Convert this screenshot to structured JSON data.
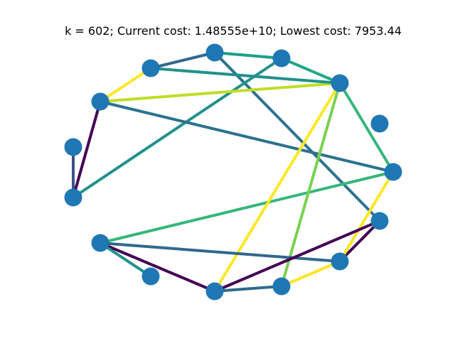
{
  "title": "k = 602; Current cost: 1.48555e+10; Lowest cost: 7953.44",
  "graph": {
    "node_color": "#1f77b4",
    "nodes": [
      {
        "id": 0
      },
      {
        "id": 1
      },
      {
        "id": 2
      },
      {
        "id": 3
      },
      {
        "id": 4
      },
      {
        "id": 5
      },
      {
        "id": 6
      },
      {
        "id": 7
      },
      {
        "id": 8
      },
      {
        "id": 9
      },
      {
        "id": 10
      },
      {
        "id": 11
      },
      {
        "id": 12
      },
      {
        "id": 13
      },
      {
        "id": 14
      }
    ],
    "edges": [
      {
        "source": 6,
        "target": 5,
        "color": "#31688e"
      },
      {
        "source": 6,
        "target": 7,
        "color": "#fde725"
      },
      {
        "source": 5,
        "target": 4,
        "color": "#1f9e89"
      },
      {
        "source": 4,
        "target": 3,
        "color": "#22a884"
      },
      {
        "source": 5,
        "target": 14,
        "color": "#2c728e"
      },
      {
        "source": 4,
        "target": 10,
        "color": "#21918c"
      },
      {
        "source": 3,
        "target": 1,
        "color": "#35b779"
      },
      {
        "source": 7,
        "target": 3,
        "color": "#bddf26"
      },
      {
        "source": 7,
        "target": 9,
        "color": "#440154"
      },
      {
        "source": 7,
        "target": 1,
        "color": "#2c728e"
      },
      {
        "source": 8,
        "target": 9,
        "color": "#3b528b"
      },
      {
        "source": 10,
        "target": 6,
        "color": "#35b779"
      },
      {
        "source": 3,
        "target": 13,
        "color": "#fde725"
      },
      {
        "source": 3,
        "target": 12,
        "color": "#7ad151"
      },
      {
        "source": 11,
        "target": 1,
        "color": "#31688e"
      },
      {
        "source": 11,
        "target": 2,
        "color": "#440154"
      },
      {
        "source": 11,
        "target": 15,
        "color": "#31688e"
      },
      {
        "source": 15,
        "target": 13,
        "color": "#fde725"
      },
      {
        "source": 13,
        "target": 12,
        "color": "#440154"
      },
      {
        "source": 12,
        "target": 2,
        "color": "#fde725"
      },
      {
        "source": 2,
        "target": 0,
        "color": "#440154"
      },
      {
        "source": 1,
        "target": 2,
        "color": "#21918c"
      },
      {
        "source": 13,
        "target": 0,
        "color": "#21918c"
      }
    ]
  }
}
